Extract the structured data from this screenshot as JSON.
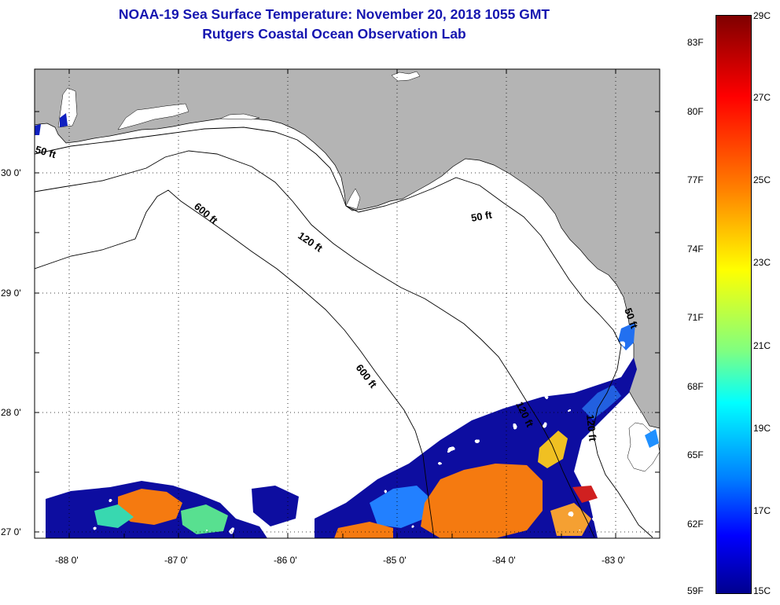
{
  "title": {
    "line1": "NOAA-19 Sea Surface Temperature:  November 20, 2018 1055 GMT",
    "line2": "Rutgers Coastal Ocean Observation Lab"
  },
  "colors": {
    "land": "#b4b4b4",
    "title": "#1515b0",
    "no_data": "#ffffff"
  },
  "axes": {
    "latitude_ticks": [
      "30 0'",
      "29 0'",
      "28 0'",
      "27 0'"
    ],
    "longitude_ticks": [
      "-88 0'",
      "-87 0'",
      "-86 0'",
      "-85 0'",
      "-84 0'",
      "-83 0'"
    ],
    "grid": "dotted"
  },
  "contours": [
    {
      "label": "50 ft",
      "count": 2
    },
    {
      "label": "120 ft",
      "count": 2
    },
    {
      "label": "600 ft",
      "count": 2
    }
  ],
  "contour_labels": [
    "50 ft",
    "50 ft",
    "50 ft",
    "120 ft",
    "120 ft",
    "600 ft",
    "600 ft"
  ],
  "colorbar": {
    "fahrenheit_labels": [
      "83F",
      "80F",
      "77F",
      "74F",
      "71F",
      "68F",
      "65F",
      "62F",
      "59F"
    ],
    "celsius_labels": [
      "29C",
      "27C",
      "25C",
      "23C",
      "21C",
      "19C",
      "17C",
      "15C"
    ],
    "range_c": [
      15,
      29
    ],
    "palette": "jet"
  }
}
